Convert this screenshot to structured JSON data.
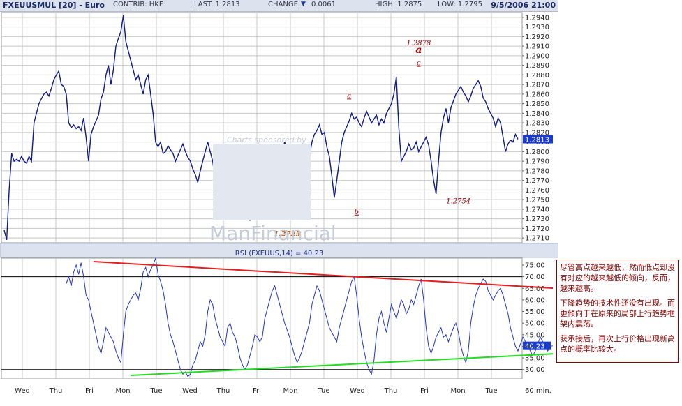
{
  "header": {
    "symbol": "FXEUUSMUL [20] - Euro",
    "contrib": "CONTRIB: HKF",
    "last": "LAST: 1.2813",
    "change_label": "CHANGE:",
    "change_arrow": "▼",
    "change_value": "0.0061",
    "high": "HIGH: 1.2875",
    "low": "LOW: 1.2795",
    "timestamp": "9/5/2006 21:00"
  },
  "watermark": {
    "sponsor": "Charts sponsored by",
    "brand": "ManFinancial"
  },
  "note": {
    "p1": "尽管高点越来越低，然而低点却没有对应的越来越低的倾向，反而，越来越高。",
    "p2": "下降趋势的技术性还没有出现。而更倾向于在原来的局部上行趋势框架内震荡。",
    "p3": "获承接后，再次上行价格出现新高点的概率比较大。"
  },
  "colors": {
    "price": "#101a8c",
    "rsi": "#2233cc",
    "resistance": "#e02020",
    "support": "#22dd22",
    "grid": "#c8c8c8",
    "annotation": "#aa0000",
    "annotation_orange": "#cc5500",
    "last_box": "#1a3ad0"
  },
  "chart_data": [
    {
      "type": "line",
      "title": "FXEUUSMUL [20] - Euro",
      "x_ticks": [
        "Wed",
        "Thu",
        "Fri",
        "Mon",
        "Tue",
        "Wed",
        "Thu",
        "Fri",
        "Mon",
        "Tue",
        "Wed",
        "Thu",
        "Fri",
        "Mon",
        "Tue"
      ],
      "x_unit_label": "60 min.",
      "ylim": [
        1.2705,
        1.2945
      ],
      "y_ticks": [
        1.271,
        1.272,
        1.273,
        1.274,
        1.275,
        1.276,
        1.277,
        1.278,
        1.279,
        1.28,
        1.281,
        1.282,
        1.283,
        1.284,
        1.285,
        1.286,
        1.287,
        1.288,
        1.289,
        1.29,
        1.291,
        1.292,
        1.293,
        1.294
      ],
      "last_value": 1.2813,
      "grid": true,
      "series": [
        {
          "values": [
            1.2718,
            1.2708,
            1.276,
            1.2798,
            1.279,
            1.2792,
            1.279,
            1.2795,
            1.279,
            1.2788,
            1.2795,
            1.279,
            1.283,
            1.284,
            1.285,
            1.2855,
            1.286,
            1.2862,
            1.2858,
            1.2866,
            1.2875,
            1.288,
            1.2884,
            1.287,
            1.2868,
            1.286,
            1.283,
            1.2825,
            1.2828,
            1.2824,
            1.2826,
            1.2822,
            1.2835,
            1.2815,
            1.279,
            1.2818,
            1.2826,
            1.2832,
            1.2838,
            1.2855,
            1.2862,
            1.288,
            1.289,
            1.287,
            1.2885,
            1.291,
            1.2918,
            1.2925,
            1.2942,
            1.2915,
            1.2905,
            1.2895,
            1.2885,
            1.2875,
            1.288,
            1.287,
            1.286,
            1.2875,
            1.288,
            1.286,
            1.284,
            1.281,
            1.2805,
            1.281,
            1.2798,
            1.28,
            1.2806,
            1.2802,
            1.2798,
            1.279,
            1.2796,
            1.2802,
            1.2808,
            1.28,
            1.2794,
            1.279,
            1.2782,
            1.2776,
            1.2768,
            1.278,
            1.279,
            1.28,
            1.281,
            1.28,
            1.279,
            1.277,
            1.2752,
            1.2752,
            1.2795,
            1.278,
            1.277,
            1.2765,
            1.276,
            1.2775,
            1.2765,
            1.2768,
            1.276,
            1.275,
            1.274,
            1.2728,
            1.2745,
            1.276,
            1.2768,
            1.2765,
            1.2762,
            1.2766,
            1.2758,
            1.276,
            1.2765,
            1.2775,
            1.278,
            1.279,
            1.28,
            1.281,
            1.28,
            1.2792,
            1.2788,
            1.2784,
            1.279,
            1.2786,
            1.278,
            1.2782,
            1.2788,
            1.2795,
            1.281,
            1.2818,
            1.2822,
            1.2828,
            1.2818,
            1.282,
            1.2805,
            1.2795,
            1.2775,
            1.2752,
            1.277,
            1.279,
            1.281,
            1.282,
            1.2826,
            1.2832,
            1.284,
            1.2834,
            1.2836,
            1.283,
            1.2826,
            1.2835,
            1.2842,
            1.2836,
            1.283,
            1.2834,
            1.2838,
            1.2828,
            1.2834,
            1.283,
            1.284,
            1.2845,
            1.285,
            1.286,
            1.2878,
            1.2825,
            1.279,
            1.2795,
            1.28,
            1.2808,
            1.2802,
            1.2804,
            1.281,
            1.28,
            1.2805,
            1.281,
            1.2815,
            1.2807,
            1.279,
            1.277,
            1.2756,
            1.279,
            1.282,
            1.2835,
            1.2845,
            1.283,
            1.2846,
            1.2853,
            1.286,
            1.2864,
            1.2868,
            1.2862,
            1.2858,
            1.2852,
            1.2858,
            1.2866,
            1.287,
            1.2874,
            1.2868,
            1.2856,
            1.2852,
            1.2845,
            1.284,
            1.2835,
            1.2826,
            1.2835,
            1.283,
            1.2815,
            1.28,
            1.2808,
            1.2812,
            1.281,
            1.2818,
            1.2813
          ]
        }
      ],
      "annotations": [
        {
          "text": "1.2878",
          "x_index": 167,
          "y": 1.2911
        },
        {
          "text": "a",
          "x_index": 167,
          "y": 1.2903
        },
        {
          "text": "c",
          "x_index": 167,
          "y": 1.289
        },
        {
          "text": "a",
          "x_index": 139,
          "y": 1.2856
        },
        {
          "text": "b",
          "x_index": 142,
          "y": 1.2735
        },
        {
          "text": "1.2754",
          "x_index": 183,
          "y": 1.2746
        },
        {
          "text": "1.2725",
          "x_index": 114,
          "y": 1.2712
        }
      ]
    },
    {
      "type": "line",
      "title": "RSI (FXEUUS,14) = 40.23",
      "ylim": [
        26,
        78
      ],
      "y_ticks": [
        30,
        35,
        40,
        45,
        50,
        55,
        60,
        65,
        70,
        75
      ],
      "reference_lines": [
        30,
        70
      ],
      "last_value": 40.23,
      "start_index": 25,
      "series": [
        {
          "values": [
            67,
            70,
            66,
            72,
            75,
            71,
            76,
            70,
            62,
            60,
            55,
            50,
            45,
            40,
            37,
            42,
            48,
            46,
            44,
            42,
            38,
            35,
            33,
            45,
            55,
            58,
            60,
            62,
            63,
            60,
            65,
            72,
            74,
            70,
            73,
            75,
            78,
            71,
            68,
            64,
            58,
            50,
            45,
            42,
            38,
            34,
            30,
            28,
            29,
            27,
            28,
            32,
            34,
            38,
            42,
            40,
            45,
            55,
            60,
            58,
            52,
            48,
            44,
            42,
            40,
            48,
            50,
            46,
            44,
            40,
            35,
            32,
            30,
            32,
            36,
            40,
            45,
            44,
            42,
            44,
            52,
            56,
            60,
            64,
            66,
            62,
            58,
            54,
            50,
            47,
            44,
            40,
            36,
            33,
            35,
            38,
            42,
            46,
            50,
            58,
            62,
            66,
            64,
            60,
            56,
            52,
            48,
            46,
            44,
            42,
            48,
            52,
            56,
            60,
            64,
            68,
            70,
            62,
            52,
            44,
            38,
            33,
            30,
            28,
            34,
            45,
            52,
            55,
            50,
            46,
            52,
            58,
            55,
            52,
            56,
            60,
            58,
            54,
            56,
            60,
            58,
            62,
            66,
            69,
            60,
            48,
            40,
            37,
            40,
            44,
            46,
            48,
            44,
            45,
            42,
            45,
            48,
            50,
            46,
            40,
            36,
            33,
            38,
            50,
            57,
            62,
            65,
            67,
            69,
            68,
            64,
            62,
            60,
            62,
            64,
            65,
            62,
            58,
            54,
            48,
            44,
            40,
            38,
            41,
            44,
            42,
            40,
            38,
            36,
            38,
            41,
            44,
            42,
            40,
            38,
            40,
            40.23
          ]
        }
      ],
      "trendlines": [
        {
          "name": "resistance",
          "from": {
            "x_index": 36,
            "y": 76.5
          },
          "to": {
            "x_index": 198,
            "y": 66.5
          }
        },
        {
          "name": "support",
          "from": {
            "x_index": 51,
            "y": 27.5
          },
          "to": {
            "x_index": 198,
            "y": 35.5
          }
        }
      ]
    }
  ]
}
